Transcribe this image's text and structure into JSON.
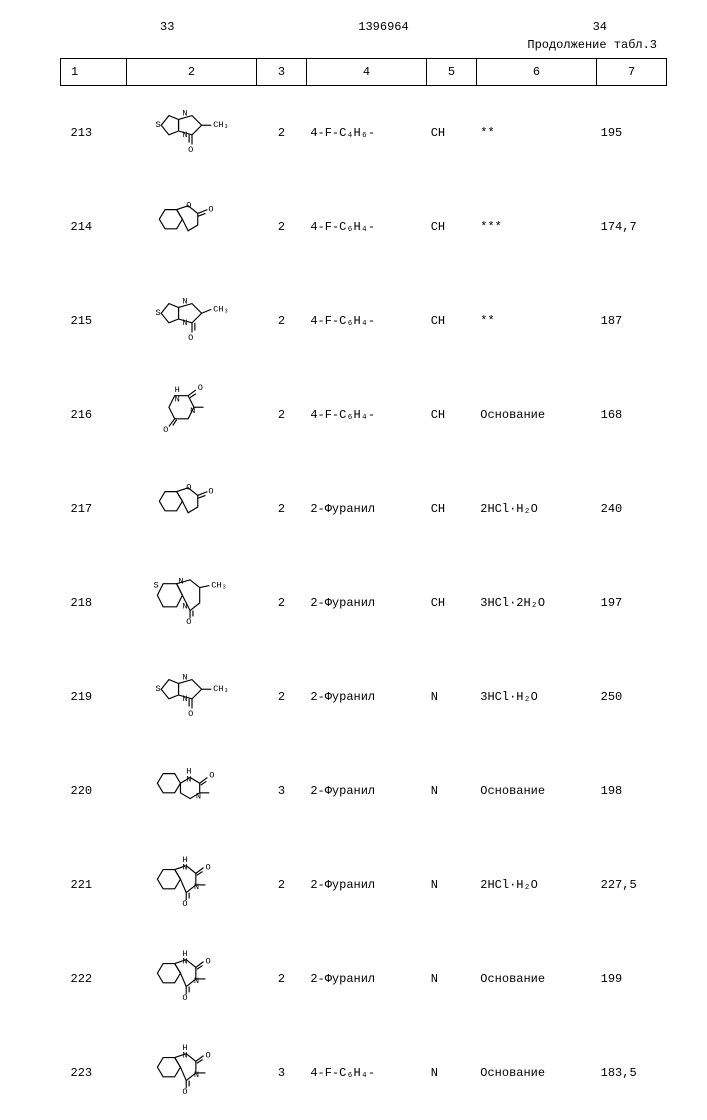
{
  "header": {
    "left_num": "33",
    "center_num": "1396964",
    "right_num": "34",
    "continuation": "Продолжение табл.3"
  },
  "columns": [
    "1",
    "2",
    "3",
    "4",
    "5",
    "6",
    "7"
  ],
  "rows": [
    {
      "c1": "213",
      "struct": "A",
      "c3": "2",
      "c4": "4-F-C₄H₆-",
      "c5": "CH",
      "c6": "**",
      "c7": "195"
    },
    {
      "c1": "214",
      "struct": "B",
      "c3": "2",
      "c4": "4-F-C₆H₄-",
      "c5": "CH",
      "c6": "***",
      "c7": "174,7"
    },
    {
      "c1": "215",
      "struct": "C",
      "c3": "2",
      "c4": "4-F-C₆H₄-",
      "c5": "CH",
      "c6": "**",
      "c7": "187"
    },
    {
      "c1": "216",
      "struct": "D",
      "c3": "2",
      "c4": "4-F-C₆H₄-",
      "c5": "CH",
      "c6": "Основание",
      "c7": "168"
    },
    {
      "c1": "217",
      "struct": "B",
      "c3": "2",
      "c4": "2-Фуранил",
      "c5": "CH",
      "c6": "2HCl·H₂O",
      "c7": "240"
    },
    {
      "c1": "218",
      "struct": "E",
      "c3": "2",
      "c4": "2-Фуранил",
      "c5": "CH",
      "c6": "3HCl·2H₂O",
      "c7": "197"
    },
    {
      "c1": "219",
      "struct": "A",
      "c3": "2",
      "c4": "2-Фуранил",
      "c5": "N",
      "c6": "3HCl·H₂O",
      "c7": "250"
    },
    {
      "c1": "220",
      "struct": "F",
      "c3": "3",
      "c4": "2-Фуранил",
      "c5": "N",
      "c6": "Основание",
      "c7": "198"
    },
    {
      "c1": "221",
      "struct": "G",
      "c3": "2",
      "c4": "2-Фуранил",
      "c5": "N",
      "c6": "2HCl·H₂O",
      "c7": "227,5"
    },
    {
      "c1": "222",
      "struct": "G",
      "c3": "2",
      "c4": "2-Фуранил",
      "c5": "N",
      "c6": "Основание",
      "c7": "199"
    },
    {
      "c1": "223",
      "struct": "G",
      "c3": "3",
      "c4": "4-F-C₆H₄-",
      "c5": "N",
      "c6": "Основание",
      "c7": "183,5"
    }
  ],
  "style": {
    "font_family": "Courier New",
    "font_size_pt": 10,
    "line_color": "#000000",
    "background": "#ffffff",
    "text_color": "#000000",
    "struct_stroke_width": 1.2,
    "struct_font_size": 9
  }
}
